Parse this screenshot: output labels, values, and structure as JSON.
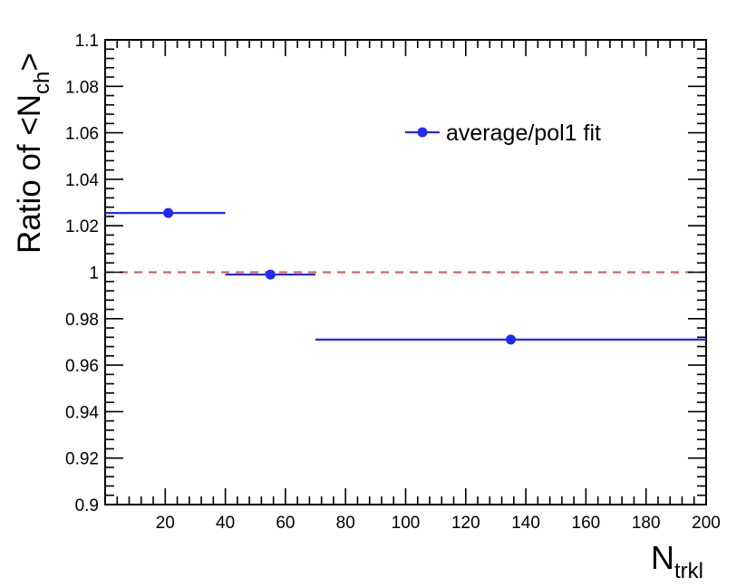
{
  "chart_data": {
    "type": "scatter",
    "xlabel": {
      "main": "N",
      "sub": "trkl"
    },
    "ylabel": {
      "prefix": "Ratio of <N",
      "sub": "ch",
      "suffix": ">"
    },
    "xlim": [
      0,
      200
    ],
    "ylim": [
      0.9,
      1.1
    ],
    "x_ticks": [
      20,
      40,
      60,
      80,
      100,
      120,
      140,
      160,
      180,
      200
    ],
    "y_ticks": [
      0.9,
      0.92,
      0.94,
      0.96,
      0.98,
      1,
      1.02,
      1.04,
      1.06,
      1.08,
      1.1
    ],
    "grid": false,
    "reference_line": {
      "y": 1,
      "style": "dashed",
      "color": "#d9534f"
    },
    "legend_position": "top-right",
    "series": [
      {
        "name": "average/pol1 fit",
        "color": "#1f2cf2",
        "points": [
          {
            "x": 21,
            "y": 1.0255,
            "xerr": [
              0,
              40
            ]
          },
          {
            "x": 55,
            "y": 0.999,
            "xerr": [
              40,
              70
            ]
          },
          {
            "x": 135,
            "y": 0.971,
            "xerr": [
              70,
              200
            ]
          }
        ]
      }
    ]
  }
}
